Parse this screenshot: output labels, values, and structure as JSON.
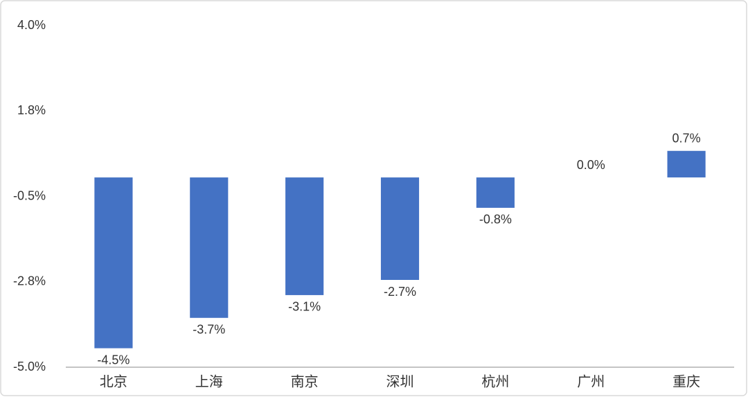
{
  "chart_data": {
    "type": "bar",
    "categories": [
      "北京",
      "上海",
      "南京",
      "深圳",
      "杭州",
      "广州",
      "重庆"
    ],
    "values": [
      -4.5,
      -3.7,
      -3.1,
      -2.7,
      -0.8,
      0.0,
      0.7
    ],
    "value_labels": [
      "-4.5%",
      "-3.7%",
      "-3.1%",
      "-2.7%",
      "-0.8%",
      "0.0%",
      "0.7%"
    ],
    "color": "#4472c4",
    "ylim": [
      -5,
      4
    ],
    "yticks": [
      {
        "value": -5,
        "label": "-5.0%"
      },
      {
        "value": -2.75,
        "label": "-2.8%"
      },
      {
        "value": -0.5,
        "label": "-0.5%"
      },
      {
        "value": 1.75,
        "label": "1.8%"
      },
      {
        "value": 4,
        "label": "4.0%"
      }
    ],
    "grid": false
  }
}
